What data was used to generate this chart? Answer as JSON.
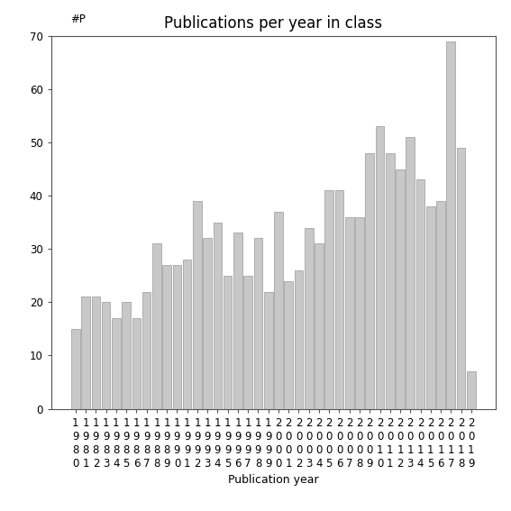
{
  "title": "Publications per year in class",
  "ylabel": "#P",
  "xlabel": "Publication year",
  "years": [
    1980,
    1981,
    1982,
    1983,
    1984,
    1985,
    1986,
    1987,
    1988,
    1989,
    1990,
    1991,
    1992,
    1993,
    1994,
    1995,
    1996,
    1997,
    1998,
    1999,
    2000,
    2001,
    2002,
    2003,
    2004,
    2005,
    2006,
    2007,
    2008,
    2009,
    2010,
    2011,
    2012,
    2013,
    2014,
    2015,
    2016,
    2017,
    2018,
    2019
  ],
  "values": [
    15,
    21,
    21,
    20,
    17,
    20,
    17,
    22,
    31,
    27,
    27,
    28,
    39,
    32,
    35,
    25,
    33,
    25,
    32,
    22,
    37,
    24,
    26,
    34,
    31,
    41,
    41,
    36,
    36,
    48,
    53,
    48,
    45,
    51,
    43,
    38,
    39,
    69,
    49,
    7
  ],
  "bar_color": "#c8c8c8",
  "bar_edge_color": "#999999",
  "ylim": [
    0,
    70
  ],
  "yticks": [
    0,
    10,
    20,
    30,
    40,
    50,
    60,
    70
  ],
  "background_color": "#ffffff",
  "title_fontsize": 12,
  "label_fontsize": 9,
  "tick_fontsize": 8.5
}
